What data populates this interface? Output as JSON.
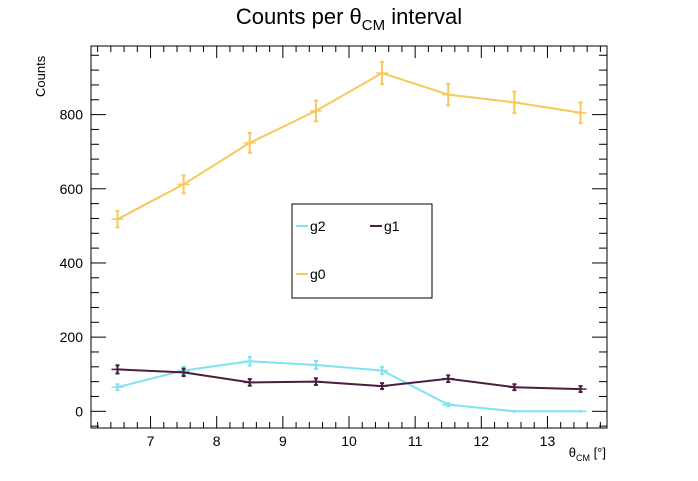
{
  "chart_data": {
    "type": "line",
    "title_main": "Counts per θ",
    "title_sub": "CM",
    "title_tail": " interval",
    "ylabel": "Counts",
    "xlabel_main": "θ",
    "xlabel_sub": "CM",
    "xlabel_tail": " [°]",
    "xlim": [
      6.1,
      13.9
    ],
    "ylim": [
      -45,
      985
    ],
    "x_ticks": [
      7,
      8,
      9,
      10,
      11,
      12,
      13
    ],
    "x_tick_labels": [
      "7",
      "8",
      "9",
      "10",
      "11",
      "12",
      "13"
    ],
    "y_ticks": [
      0,
      200,
      400,
      600,
      800
    ],
    "y_tick_labels": [
      "0",
      "200",
      "400",
      "600",
      "800"
    ],
    "x": [
      6.5,
      7.5,
      8.5,
      9.5,
      10.5,
      11.5,
      12.5,
      13.5
    ],
    "series": [
      {
        "name": "g2",
        "color": "#7fe3f2",
        "values": [
          65,
          110,
          135,
          125,
          110,
          18,
          0,
          0
        ],
        "errors": [
          8,
          10,
          12,
          11,
          10,
          4,
          0,
          0
        ]
      },
      {
        "name": "g1",
        "color": "#4a1f3d",
        "values": [
          113,
          105,
          78,
          80,
          68,
          88,
          65,
          60
        ],
        "errors": [
          11,
          10,
          9,
          9,
          8,
          9,
          8,
          8
        ]
      },
      {
        "name": "g0",
        "color": "#f7c85b",
        "values": [
          518,
          612,
          724,
          810,
          912,
          854,
          833,
          805
        ],
        "errors": [
          22,
          24,
          27,
          28,
          30,
          29,
          29,
          28
        ]
      }
    ],
    "legend": [
      {
        "label": "g2",
        "color": "#7fe3f2"
      },
      {
        "label": "g1",
        "color": "#4a1f3d"
      },
      {
        "label": "g0",
        "color": "#f7c85b"
      }
    ],
    "legend_position": "center",
    "grid": false
  }
}
